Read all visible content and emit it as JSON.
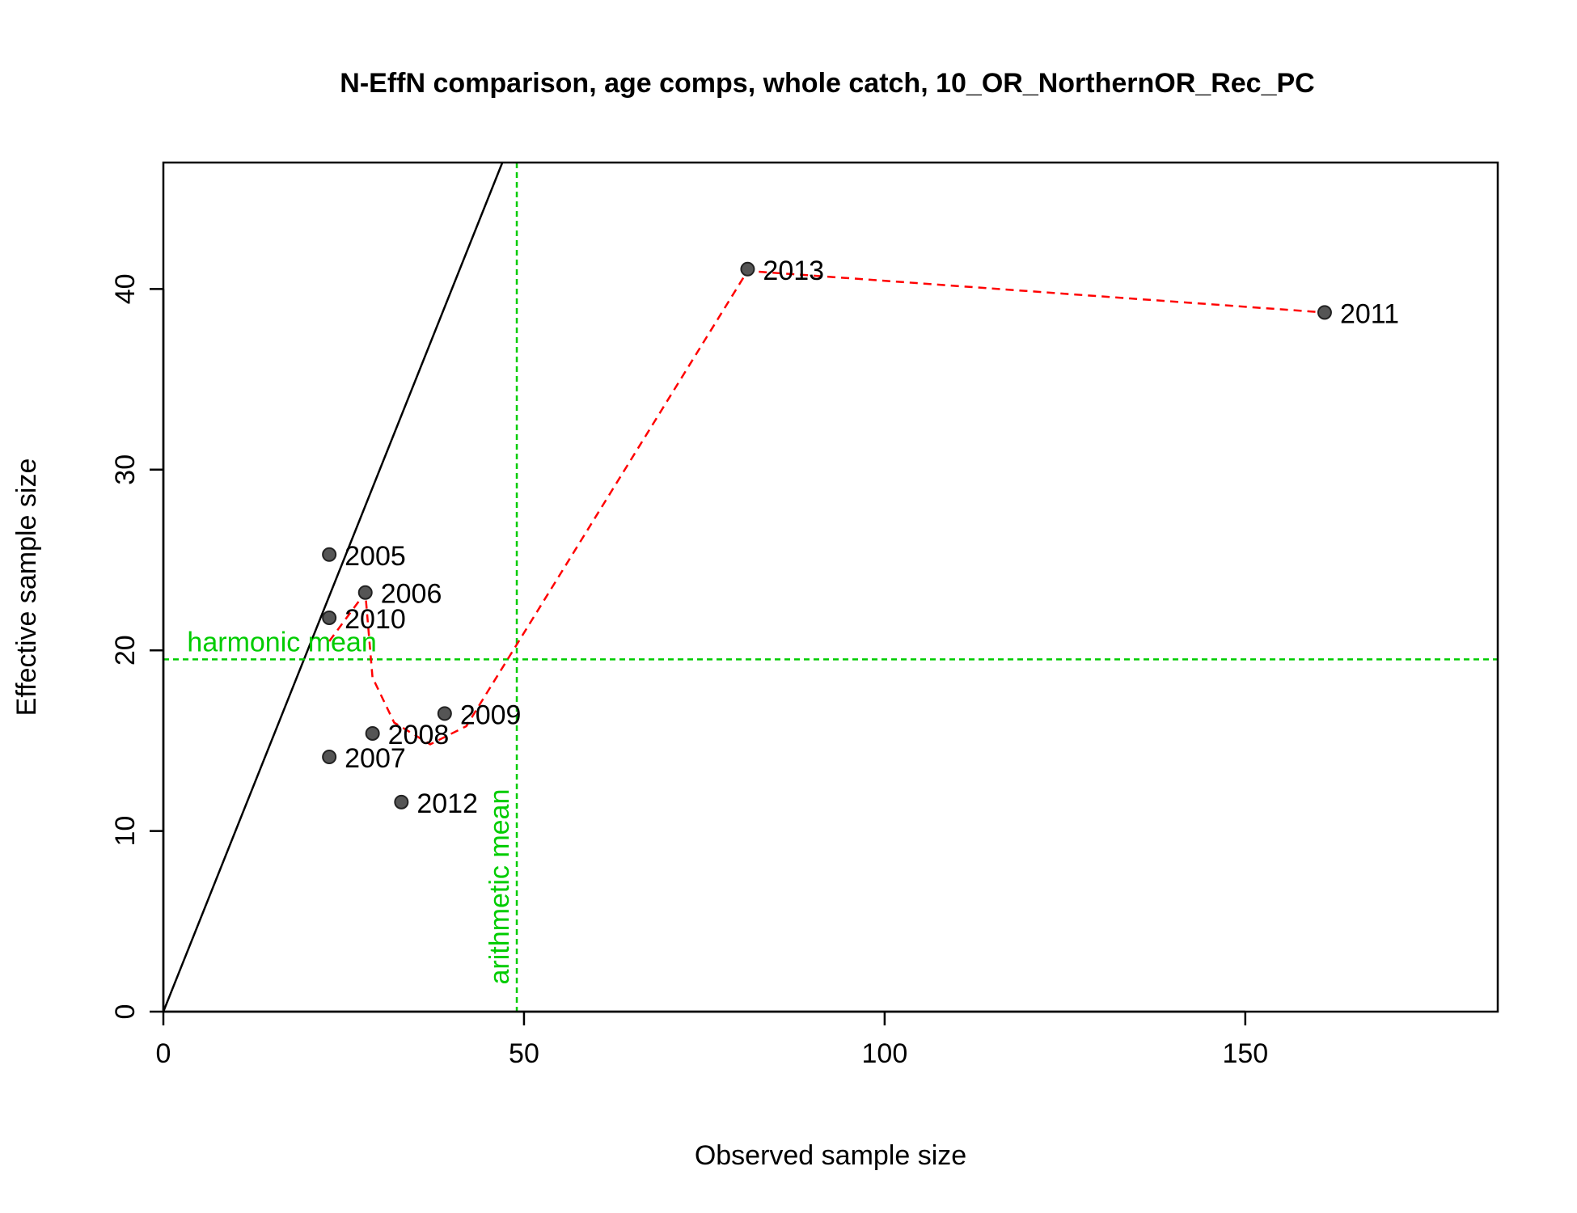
{
  "chart_data": {
    "type": "scatter",
    "title": "N-EffN comparison, age comps, whole catch, 10_OR_NorthernOR_Rec_PC",
    "xlabel": "Observed sample size",
    "ylabel": "Effective sample size",
    "xlim": [
      0,
      185
    ],
    "ylim": [
      0,
      47
    ],
    "xticks": [
      0,
      50,
      100,
      150
    ],
    "yticks": [
      0,
      10,
      20,
      30,
      40
    ],
    "grid": false,
    "points": [
      {
        "label": "2005",
        "x": 23,
        "y": 25.3
      },
      {
        "label": "2006",
        "x": 28,
        "y": 23.2
      },
      {
        "label": "2007",
        "x": 23,
        "y": 14.1
      },
      {
        "label": "2008",
        "x": 29,
        "y": 15.4
      },
      {
        "label": "2009",
        "x": 39,
        "y": 16.5
      },
      {
        "label": "2010",
        "x": 23,
        "y": 21.8
      },
      {
        "label": "2011",
        "x": 161,
        "y": 38.7
      },
      {
        "label": "2012",
        "x": 33,
        "y": 11.6
      },
      {
        "label": "2013",
        "x": 81,
        "y": 41.1
      }
    ],
    "smoother": [
      [
        23,
        20.5
      ],
      [
        28,
        23.2
      ],
      [
        29,
        18.5
      ],
      [
        32,
        16.0
      ],
      [
        37,
        14.8
      ],
      [
        42,
        15.8
      ],
      [
        81,
        41.0
      ],
      [
        161,
        38.7
      ]
    ],
    "identity_line": {
      "slope": 1
    },
    "harmonic_mean": {
      "label": "harmonic mean",
      "value": 19.5
    },
    "arithmetic_mean": {
      "label": "arithmetic mean",
      "value": 49
    },
    "colors": {
      "points": "#555555",
      "smoother": "#ff0000",
      "means": "#00cc00",
      "identity": "#000000"
    }
  }
}
